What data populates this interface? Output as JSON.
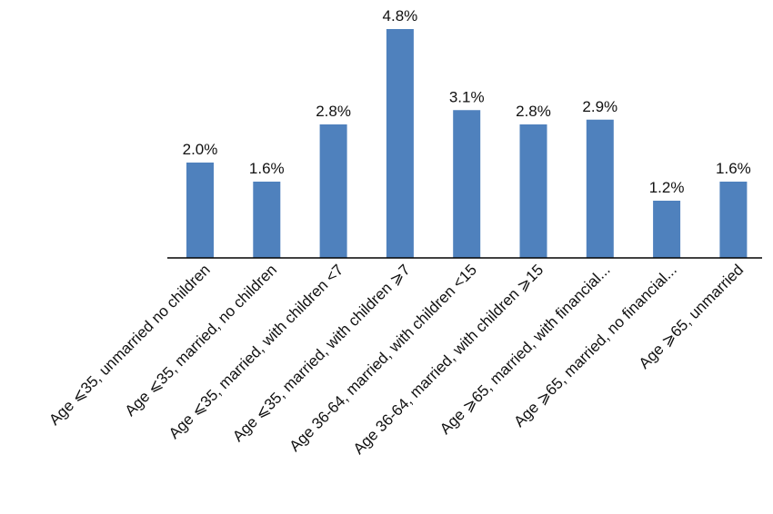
{
  "chart_data": {
    "type": "bar",
    "title": "",
    "xlabel": "",
    "ylabel": "",
    "categories": [
      "Age ⩽35, unmarried no children",
      "Age ⩽35, married, no children",
      "Age ⩽35, married, with children <7",
      "Age ⩽35, married, with children ⩾7",
      "Age 36-64, married, with children <15",
      "Age 36-64, married, with children ⩾15",
      "Age ⩾65, married, with financial...",
      "Age ⩾65, married, no financial...",
      "Age ⩾65, unmarried"
    ],
    "values": [
      2.0,
      1.6,
      2.8,
      4.8,
      3.1,
      2.8,
      2.9,
      1.2,
      1.6
    ],
    "value_labels": [
      "2.0%",
      "1.6%",
      "2.8%",
      "4.8%",
      "3.1%",
      "2.8%",
      "2.9%",
      "1.2%",
      "1.6%"
    ],
    "ylim": [
      0,
      5.0
    ],
    "grid": false,
    "legend": "none",
    "bar_color": "#4F81BD",
    "axis_color": "#000000"
  }
}
